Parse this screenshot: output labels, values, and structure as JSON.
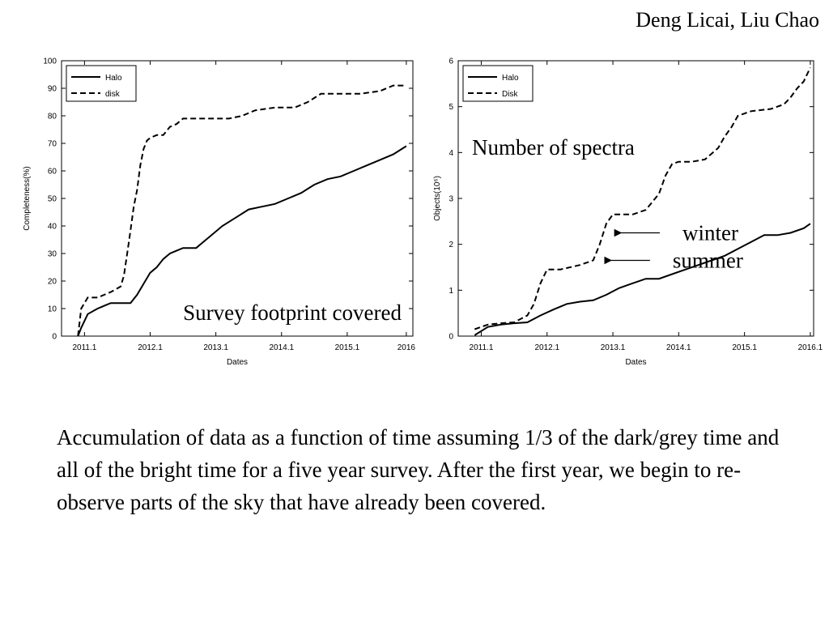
{
  "header": {
    "authors": "Deng Licai, Liu Chao"
  },
  "caption": "Accumulation of data as a function of time assuming 1/3 of the dark/grey time and all of the bright time for a five year survey. After the first year, we begin to re-observe parts of the sky that have already been covered.",
  "chart_data": [
    {
      "type": "line",
      "xlabel": "Dates",
      "ylabel": "Completeness(%)",
      "xlim": [
        2010.75,
        2016.1
      ],
      "ylim": [
        0,
        100
      ],
      "x_ticks": [
        2011.1,
        2012.1,
        2013.1,
        2014.1,
        2015.1,
        2016.0
      ],
      "x_tick_labels": [
        "2011.1",
        "2012.1",
        "2013.1",
        "2014.1",
        "2015.1",
        "2016"
      ],
      "y_ticks": [
        0,
        10,
        20,
        30,
        40,
        50,
        60,
        70,
        80,
        90,
        100
      ],
      "y_tick_labels": [
        "0",
        "10",
        "20",
        "30",
        "40",
        "50",
        "60",
        "70",
        "80",
        "90",
        "100"
      ],
      "legend": {
        "position": "top-left"
      },
      "grid": false,
      "annotation": "Survey footprint covered",
      "series": [
        {
          "name": "Halo",
          "style": "solid",
          "x": [
            2011.0,
            2011.05,
            2011.15,
            2011.3,
            2011.4,
            2011.5,
            2011.6,
            2011.7,
            2011.8,
            2011.9,
            2012.0,
            2012.1,
            2012.2,
            2012.3,
            2012.4,
            2012.5,
            2012.6,
            2012.7,
            2012.8,
            2012.9,
            2013.0,
            2013.2,
            2013.4,
            2013.6,
            2013.8,
            2014.0,
            2014.2,
            2014.4,
            2014.6,
            2014.8,
            2015.0,
            2015.2,
            2015.4,
            2015.6,
            2015.8,
            2016.0
          ],
          "y": [
            0,
            3,
            8,
            10,
            11,
            12,
            12,
            12,
            12,
            15,
            19,
            23,
            25,
            28,
            30,
            31,
            32,
            32,
            32,
            34,
            36,
            40,
            43,
            46,
            47,
            48,
            50,
            52,
            55,
            57,
            58,
            60,
            62,
            64,
            66,
            69
          ]
        },
        {
          "name": "disk",
          "style": "dashed",
          "x": [
            2011.0,
            2011.05,
            2011.15,
            2011.3,
            2011.5,
            2011.65,
            2011.7,
            2011.78,
            2011.85,
            2011.9,
            2011.95,
            2012.0,
            2012.05,
            2012.1,
            2012.2,
            2012.3,
            2012.4,
            2012.5,
            2012.6,
            2012.8,
            2013.0,
            2013.3,
            2013.5,
            2013.7,
            2014.0,
            2014.3,
            2014.5,
            2014.7,
            2015.0,
            2015.3,
            2015.6,
            2015.8,
            2016.0
          ],
          "y": [
            0,
            10,
            14,
            14,
            16,
            18,
            22,
            35,
            47,
            53,
            62,
            68,
            71,
            72,
            73,
            73,
            76,
            77,
            79,
            79,
            79,
            79,
            80,
            82,
            83,
            83,
            85,
            88,
            88,
            88,
            89,
            91,
            91
          ]
        }
      ]
    },
    {
      "type": "line",
      "xlabel": "Dates",
      "ylabel": "Objects(10⁶)",
      "xlim": [
        2010.75,
        2016.15
      ],
      "ylim": [
        0,
        6
      ],
      "x_ticks": [
        2011.1,
        2012.1,
        2013.1,
        2014.1,
        2015.1,
        2016.1
      ],
      "x_tick_labels": [
        "2011.1",
        "2012.1",
        "2013.1",
        "2014.1",
        "2015.1",
        "2016.1"
      ],
      "y_ticks": [
        0,
        1,
        2,
        3,
        4,
        5,
        6
      ],
      "y_tick_labels": [
        "0",
        "1",
        "2",
        "3",
        "4",
        "5",
        "6"
      ],
      "legend": {
        "position": "top-left"
      },
      "grid": false,
      "title_annotation": "Number of spectra",
      "arrow_labels": [
        {
          "text": "winter",
          "x": 2013.1,
          "y": 2.25
        },
        {
          "text": "summer",
          "x": 2012.95,
          "y": 1.65
        }
      ],
      "series": [
        {
          "name": "Halo",
          "style": "solid",
          "x": [
            2011.0,
            2011.2,
            2011.4,
            2011.6,
            2011.8,
            2012.0,
            2012.2,
            2012.4,
            2012.6,
            2012.8,
            2013.0,
            2013.2,
            2013.4,
            2013.6,
            2013.8,
            2014.0,
            2014.2,
            2014.4,
            2014.6,
            2014.8,
            2015.0,
            2015.2,
            2015.4,
            2015.6,
            2015.8,
            2016.0,
            2016.1
          ],
          "y": [
            0.02,
            0.2,
            0.25,
            0.28,
            0.3,
            0.45,
            0.58,
            0.7,
            0.75,
            0.78,
            0.9,
            1.05,
            1.15,
            1.25,
            1.25,
            1.35,
            1.45,
            1.55,
            1.65,
            1.75,
            1.9,
            2.05,
            2.2,
            2.2,
            2.25,
            2.35,
            2.45
          ]
        },
        {
          "name": "Disk",
          "style": "dashed",
          "x": [
            2011.0,
            2011.2,
            2011.4,
            2011.6,
            2011.8,
            2011.9,
            2012.0,
            2012.1,
            2012.3,
            2012.6,
            2012.8,
            2012.9,
            2013.0,
            2013.1,
            2013.2,
            2013.4,
            2013.6,
            2013.8,
            2013.9,
            2014.0,
            2014.1,
            2014.3,
            2014.5,
            2014.7,
            2014.8,
            2014.9,
            2015.0,
            2015.2,
            2015.5,
            2015.7,
            2015.8,
            2015.9,
            2016.0,
            2016.1
          ],
          "y": [
            0.15,
            0.25,
            0.28,
            0.3,
            0.45,
            0.7,
            1.15,
            1.45,
            1.45,
            1.55,
            1.65,
            2.0,
            2.45,
            2.65,
            2.65,
            2.65,
            2.75,
            3.1,
            3.5,
            3.75,
            3.8,
            3.8,
            3.85,
            4.1,
            4.35,
            4.55,
            4.8,
            4.9,
            4.95,
            5.05,
            5.2,
            5.4,
            5.55,
            5.85
          ]
        }
      ]
    }
  ]
}
